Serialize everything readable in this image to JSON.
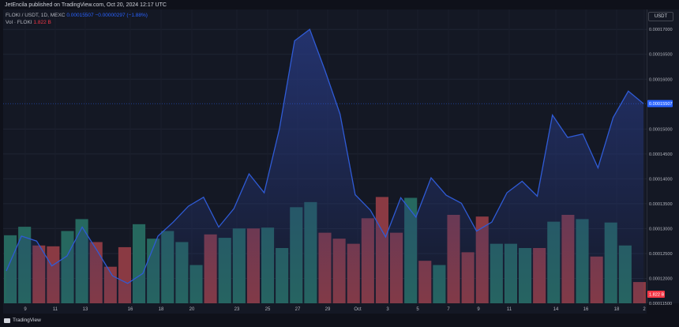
{
  "header": {
    "published_text": "JetEncila published on TradingView.com, Oct 20, 2024 12:17 UTC"
  },
  "legend": {
    "symbol": "FLOKI / USDT, 1D, MEXC",
    "price": "0.00015507",
    "change": "−0.00000297 (−1.88%)",
    "volume_label": "Vol · FLOKI",
    "volume_value": "1.822 B"
  },
  "currency": "USDT",
  "footer": {
    "brand": "TradingView"
  },
  "colors": {
    "line": "#2f5bd6",
    "area_top": "#26377a",
    "vol_up": "#26685f",
    "vol_down": "#8a3a43",
    "price_badge": "#2962ff",
    "vol_badge": "#f23645"
  },
  "chart_data": {
    "type": "line",
    "x_tick_labels": [
      "9",
      "11",
      "13",
      "16",
      "18",
      "20",
      "23",
      "25",
      "27",
      "29",
      "Oct",
      "3",
      "5",
      "7",
      "9",
      "11",
      "14",
      "16",
      "18",
      "2"
    ],
    "ylim": [
      0.000115,
      0.000174
    ],
    "y_tick_labels": [
      "0.00017000",
      "0.00016500",
      "0.00016000",
      "0.00015000",
      "0.00014500",
      "0.00014000",
      "0.00013500",
      "0.00013000",
      "0.00012500",
      "0.00012000",
      "0.00011500"
    ],
    "last_price_label": "0.00015507",
    "last_volume_label": "1.822 B",
    "series": [
      {
        "values": [
          0.0001215,
          0.0001285,
          0.0001275,
          0.0001225,
          0.0001245,
          0.0001303,
          0.0001255,
          0.0001205,
          0.000119,
          0.000121,
          0.0001285,
          0.0001313,
          0.0001345,
          0.0001363,
          0.0001303,
          0.000134,
          0.000141,
          0.0001372,
          0.00015,
          0.0001677,
          0.00017,
          0.0001618,
          0.000153,
          0.0001368,
          0.0001337,
          0.0001283,
          0.0001362,
          0.0001323,
          0.0001402,
          0.0001367,
          0.0001351,
          0.0001295,
          0.0001313,
          0.0001372,
          0.0001395,
          0.0001365,
          0.0001528,
          0.0001483,
          0.000149,
          0.0001422,
          0.0001523,
          0.0001576,
          0.0001551
        ]
      },
      {
        "values": [
          80,
          90,
          68,
          67,
          85,
          99,
          72,
          43,
          66,
          93,
          76,
          85,
          72,
          45,
          81,
          77,
          88,
          88,
          89,
          65,
          113,
          119,
          83,
          76,
          70,
          100,
          125,
          83,
          124,
          50,
          45,
          104,
          60,
          102,
          70,
          70,
          65,
          65,
          96,
          104,
          99,
          55,
          95,
          68,
          25
        ],
        "directions": [
          "up",
          "up",
          "down",
          "down",
          "up",
          "up",
          "down",
          "down",
          "down",
          "up",
          "up",
          "up",
          "up",
          "up",
          "down",
          "up",
          "up",
          "down",
          "up",
          "up",
          "up",
          "up",
          "down",
          "down",
          "down",
          "down",
          "down",
          "down",
          "up",
          "down",
          "up",
          "down",
          "down",
          "down",
          "up",
          "up",
          "up",
          "down",
          "up",
          "down",
          "up",
          "down",
          "up",
          "up",
          "down"
        ]
      }
    ]
  }
}
